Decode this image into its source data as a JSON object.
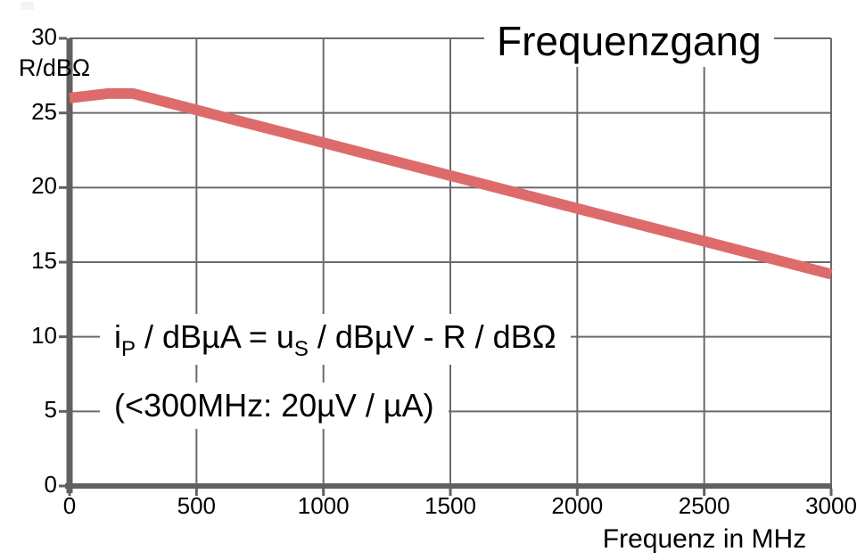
{
  "chart_data": {
    "type": "line",
    "title": "Frequenzgang",
    "xlabel": "Frequenz in MHz",
    "ylabel": "R/dBΩ",
    "xlim": [
      0,
      3000
    ],
    "ylim": [
      0,
      30
    ],
    "x_ticks": [
      0,
      500,
      1000,
      1500,
      2000,
      2500,
      3000
    ],
    "y_ticks": [
      0,
      5,
      10,
      15,
      20,
      25,
      30
    ],
    "grid": true,
    "legend": "none",
    "series": [
      {
        "name": "R / dBΩ",
        "color": "#dd6b6b",
        "stroke_width": 12,
        "points": [
          [
            0,
            26.0
          ],
          [
            150,
            26.3
          ],
          [
            250,
            26.3
          ],
          [
            500,
            25.2
          ],
          [
            1000,
            23.0
          ],
          [
            1500,
            20.8
          ],
          [
            2000,
            18.6
          ],
          [
            2500,
            16.4
          ],
          [
            3000,
            14.2
          ]
        ]
      }
    ],
    "annotations": [
      "i_P / dBµA = u_S / dBµV - R / dBΩ",
      "(<300MHz: 20µV / µA)"
    ]
  },
  "formula": {
    "var1": "i",
    "var1_sub": "P",
    "mid": " / dBµA = u",
    "var2_sub": "S",
    "rest": " / dBµV - R / dBΩ",
    "note": "(<300MHz: 20µV / µA)"
  },
  "colors": {
    "line": "#dd6b6b",
    "axis": "#616161",
    "grid": "#6a6a6a",
    "text": "#000000",
    "background": "#ffffff"
  }
}
